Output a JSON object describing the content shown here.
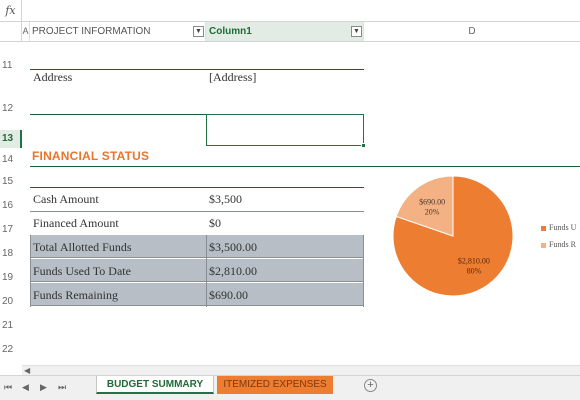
{
  "formula_bar": {
    "fx_label": "fx",
    "value": ""
  },
  "columns": {
    "a": "A",
    "b": "PROJECT INFORMATION",
    "c": "Column1",
    "d": "D"
  },
  "rows": [
    "11",
    "12",
    "13",
    "14",
    "15",
    "16",
    "17",
    "18",
    "19",
    "20",
    "21",
    "22"
  ],
  "active_row": "13",
  "project": {
    "address_label": "Address",
    "address_value": "[Address]"
  },
  "financial_status": {
    "title": "FINANCIAL STATUS",
    "items": [
      {
        "label": "Cash Amount",
        "value": "$3,500"
      },
      {
        "label": "Financed Amount",
        "value": "$0"
      },
      {
        "label": "Total Allotted Funds",
        "value": "$3,500.00"
      },
      {
        "label": "Funds Used To Date",
        "value": "$2,810.00"
      },
      {
        "label": "Funds Remaining",
        "value": "$690.00"
      }
    ]
  },
  "chart_data": {
    "type": "pie",
    "slices": [
      {
        "name": "Funds U",
        "value": 2810,
        "value_label": "$2,810.00",
        "percent_label": "80%",
        "color": "#ed7d31"
      },
      {
        "name": "Funds R",
        "value": 690,
        "value_label": "$690.00",
        "percent_label": "20%",
        "color": "#f4b183"
      }
    ],
    "legend_position": "right"
  },
  "sheet_tabs": [
    {
      "label": "BUDGET SUMMARY",
      "active": true
    },
    {
      "label": "ITEMIZED EXPENSES",
      "active": false
    }
  ],
  "icons": {
    "prev_sheet": "◀",
    "next_sheet": "▶",
    "first_sheet": "⏮",
    "last_sheet": "⏭",
    "add_sheet": "+",
    "dropdown": "▼",
    "scroll_left": "◀"
  },
  "colors": {
    "accent_green": "#217346",
    "orange": "#ed7d31",
    "light_orange": "#f4b183",
    "shaded_row": "#b7bec5"
  }
}
